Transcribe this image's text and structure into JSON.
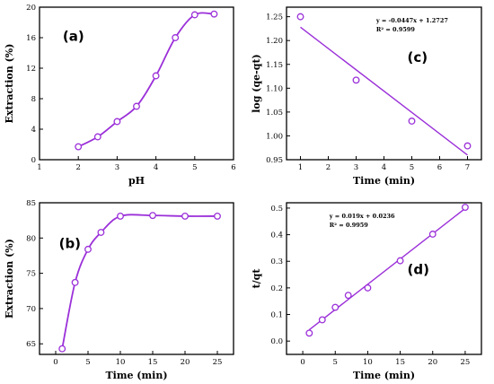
{
  "panel_colors": {
    "series": "#9b30d9",
    "axis": "#000000"
  },
  "chart_data": [
    {
      "id": "a",
      "type": "line",
      "panel_label": "(a)",
      "xlabel": "pH",
      "ylabel": "Extraction (%)",
      "xlim": [
        1,
        6
      ],
      "ylim": [
        0,
        20
      ],
      "xticks": [
        1,
        2,
        3,
        4,
        5,
        6
      ],
      "yticks": [
        0,
        4,
        8,
        12,
        16,
        20
      ],
      "x": [
        2,
        2.5,
        3,
        3.5,
        4,
        4.5,
        5,
        5.5
      ],
      "y": [
        1.7,
        3.0,
        5.0,
        7.0,
        11.0,
        16.0,
        19.0,
        19.1
      ],
      "grid": false,
      "smooth": true
    },
    {
      "id": "b",
      "type": "line",
      "panel_label": "(b)",
      "xlabel": "Time (min)",
      "ylabel": "Extraction (%)",
      "xlim": [
        -2.5,
        27.5
      ],
      "ylim": [
        63.5,
        85
      ],
      "xticks": [
        0,
        5,
        10,
        15,
        20,
        25
      ],
      "yticks": [
        65,
        70,
        75,
        80,
        85
      ],
      "x": [
        1,
        3,
        5,
        7,
        10,
        15,
        20,
        25
      ],
      "y": [
        64.3,
        73.7,
        78.4,
        80.8,
        83.1,
        83.2,
        83.1,
        83.1
      ],
      "grid": false,
      "smooth": true
    },
    {
      "id": "c",
      "type": "scatter",
      "panel_label": "(c)",
      "xlabel": "Time (min)",
      "ylabel": "log (qe-qt)",
      "xlim": [
        0.5,
        7.5
      ],
      "ylim": [
        0.95,
        1.27
      ],
      "xticks": [
        1,
        2,
        3,
        4,
        5,
        6,
        7
      ],
      "yticks": [
        0.95,
        1.0,
        1.05,
        1.1,
        1.15,
        1.2,
        1.25
      ],
      "ytick_labels": [
        "0.95",
        "1.00",
        "1.05",
        "1.10",
        "1.15",
        "1.20",
        "1.25"
      ],
      "x": [
        1,
        3,
        5,
        7
      ],
      "y": [
        1.25,
        1.117,
        1.031,
        0.979
      ],
      "fit": {
        "slope": -0.0447,
        "intercept": 1.2727,
        "x_range": [
          1,
          7
        ]
      },
      "equation": "y = -0.0447x + 1.2727",
      "r_squared": "R² = 0.9599",
      "grid": false
    },
    {
      "id": "d",
      "type": "scatter",
      "panel_label": "(d)",
      "xlabel": "Time (min)",
      "ylabel": "t/qt",
      "xlim": [
        -2.5,
        27.5
      ],
      "ylim": [
        -0.05,
        0.52
      ],
      "xticks": [
        0,
        5,
        10,
        15,
        20,
        25
      ],
      "yticks": [
        0.0,
        0.1,
        0.2,
        0.3,
        0.4,
        0.5
      ],
      "ytick_labels": [
        "0.0",
        "0.1",
        "0.2",
        "0.3",
        "0.4",
        "0.5"
      ],
      "x": [
        1,
        3,
        5,
        7,
        10,
        15,
        20,
        25
      ],
      "y": [
        0.03,
        0.08,
        0.127,
        0.172,
        0.2,
        0.302,
        0.402,
        0.503
      ],
      "fit": {
        "slope": 0.019,
        "intercept": 0.0236,
        "x_range": [
          1,
          25
        ]
      },
      "equation": "y = 0.019x + 0.0236",
      "r_squared": "R² = 0.9959",
      "grid": false
    }
  ]
}
